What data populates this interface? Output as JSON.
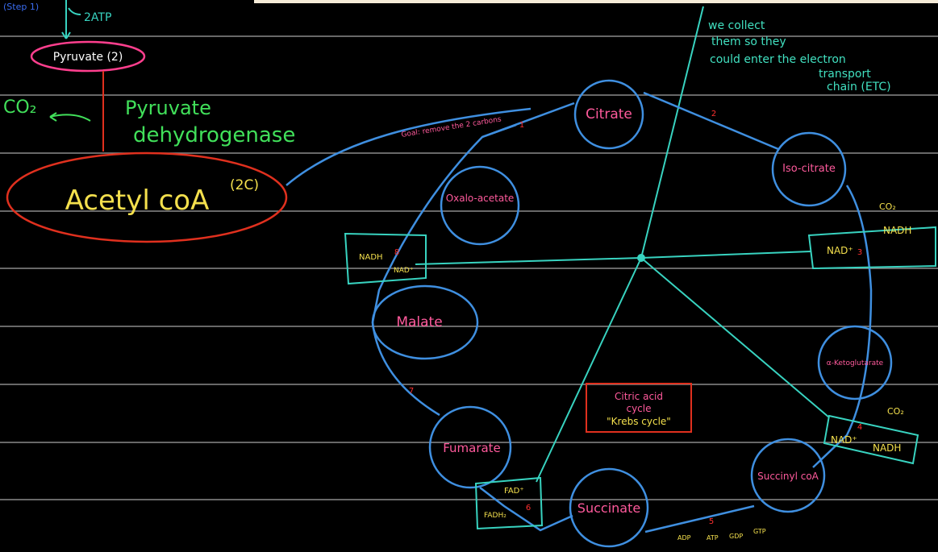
{
  "header": {
    "step": "(Step 1)",
    "atp": "2ATP"
  },
  "left": {
    "pyruvate": "Pyruvate (2)",
    "co2": "CO₂",
    "enzyme": [
      "Pyruvate",
      "dehydrogenase"
    ],
    "acetyl": "Acetyl coA",
    "carbons": "(2C)"
  },
  "goal": "Goal: remove the 2 carbons",
  "note": [
    "we collect",
    "them so they",
    "could enter the electron",
    "transport",
    "chain (ETC)"
  ],
  "nodes": [
    {
      "label": "Citrate"
    },
    {
      "label": "Iso-citrate"
    },
    {
      "label": "α-Ketoglutarate"
    },
    {
      "label": "Succinyl coA"
    },
    {
      "label": "Succinate"
    },
    {
      "label": "Fumarate"
    },
    {
      "label": "Malate"
    },
    {
      "label": "Oxalo-acetate"
    }
  ],
  "steps": [
    "1",
    "2",
    "3",
    "4",
    "5",
    "6",
    "7",
    "8"
  ],
  "boxes": {
    "step3": {
      "in": "NAD⁺",
      "out": "NADH",
      "gas": "CO₂"
    },
    "step4": {
      "in": "NAD⁺",
      "out": "NADH",
      "gas": "CO₂"
    },
    "step6": {
      "in": "FAD⁺",
      "out": "FADH₂"
    },
    "step8": {
      "in": "NAD⁺",
      "out": "NADH"
    },
    "step5": [
      "ADP",
      "ATP",
      "GDP",
      "GTP"
    ]
  },
  "center": [
    "Citric acid",
    "cycle",
    "\"Krebs cycle\""
  ]
}
